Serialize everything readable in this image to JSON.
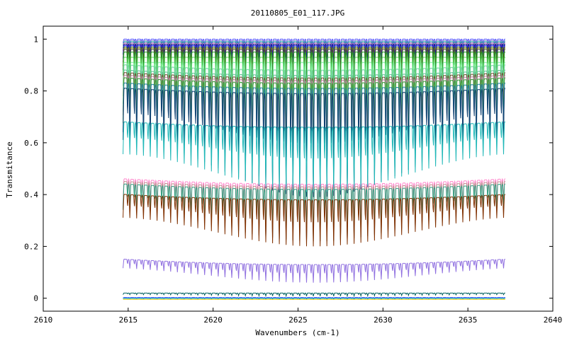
{
  "chart_data": {
    "type": "line",
    "title": "20110805_E01_117.JPG",
    "xlabel": "Wavenumbers (cm-1)",
    "ylabel": "Transmitance",
    "xlim": [
      2610,
      2640
    ],
    "ylim": [
      -0.05,
      1.05
    ],
    "xticks": [
      2610,
      2615,
      2620,
      2625,
      2630,
      2635,
      2640
    ],
    "xtick_labels": [
      "2610",
      "2615",
      "2620",
      "2625",
      "2630",
      "2635",
      "2640"
    ],
    "yticks": [
      0,
      0.2,
      0.4,
      0.6,
      0.8,
      1
    ],
    "ytick_labels": [
      "0",
      "0.2",
      "0.4",
      "0.6",
      "0.8",
      "1"
    ],
    "grid": false,
    "legend": "none",
    "x_range": [
      2614.7,
      2637.2
    ],
    "line_spacing": 0.4,
    "series": [
      {
        "color": "#5c5cff",
        "baseline": 1.0,
        "depth": 0.03
      },
      {
        "color": "#88c",
        "baseline": 0.995,
        "depth": 0.04
      },
      {
        "color": "#00a0a0",
        "baseline": 0.99,
        "depth": 0.05
      },
      {
        "color": "#c060c0",
        "baseline": 0.985,
        "depth": 0.06
      },
      {
        "color": "#000080",
        "baseline": 0.98,
        "depth": 0.08
      },
      {
        "color": "#2020ff",
        "baseline": 0.975,
        "depth": 0.1
      },
      {
        "color": "#306030",
        "baseline": 0.97,
        "depth": 0.12
      },
      {
        "color": "#808000",
        "baseline": 0.965,
        "depth": 0.14
      },
      {
        "color": "#404040",
        "baseline": 0.96,
        "depth": 0.16
      },
      {
        "color": "#20a020",
        "baseline": 0.95,
        "depth": 0.18
      },
      {
        "color": "#60d060",
        "baseline": 0.93,
        "depth": 0.22
      },
      {
        "color": "#80f0a0",
        "baseline": 0.91,
        "depth": 0.26
      },
      {
        "color": "#70d0a0",
        "baseline": 0.88,
        "depth": 0.3
      },
      {
        "color": "#60c090",
        "baseline": 0.86,
        "depth": 0.32
      },
      {
        "color": "#705030",
        "baseline": 0.85,
        "depth": 0.33
      },
      {
        "color": "#c080a0",
        "baseline": 0.84,
        "depth": 0.34
      },
      {
        "color": "#30a030",
        "baseline": 0.83,
        "depth": 0.35
      },
      {
        "color": "#2080a0",
        "baseline": 0.81,
        "depth": 0.38
      },
      {
        "color": "#104070",
        "baseline": 0.79,
        "depth": 0.4
      },
      {
        "color": "#20b8b8",
        "baseline": 0.66,
        "depth": 0.25
      },
      {
        "color": "#ff88cc",
        "baseline": 0.44,
        "depth": 0.22
      },
      {
        "color": "#c09090",
        "baseline": 0.43,
        "depth": 0.21
      },
      {
        "color": "#30a080",
        "baseline": 0.42,
        "depth": 0.2
      },
      {
        "color": "#803000",
        "baseline": 0.38,
        "depth": 0.18
      },
      {
        "color": "#9070e0",
        "baseline": 0.13,
        "depth": 0.07
      },
      {
        "color": "#006060",
        "baseline": 0.02,
        "depth": 0.012
      },
      {
        "color": "#0000ff",
        "baseline": 0.002,
        "depth": 0.002
      },
      {
        "color": "#e0c000",
        "baseline": -0.004,
        "depth": 0.001
      },
      {
        "color": "#00c0c0",
        "baseline": 0.0,
        "depth": 0.002
      }
    ]
  }
}
